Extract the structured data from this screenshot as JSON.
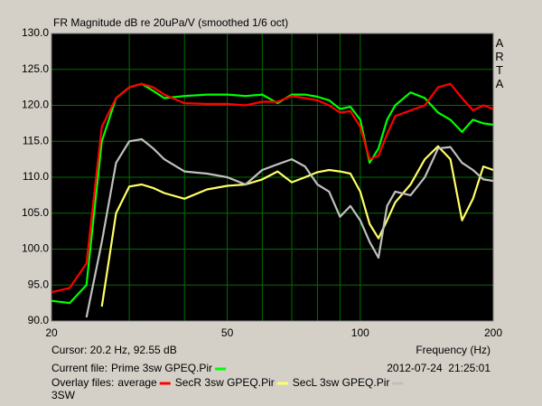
{
  "chart_data": {
    "type": "line",
    "title": "FR Magnitude dB re 20uPa/V (smoothed 1/6 oct)",
    "x_label": "Frequency (Hz)",
    "xlog": true,
    "grid": true,
    "x": [
      20,
      22,
      24,
      26,
      28,
      30,
      32,
      34,
      36,
      40,
      45,
      50,
      55,
      60,
      65,
      70,
      75,
      80,
      85,
      90,
      95,
      100,
      105,
      110,
      115,
      120,
      130,
      140,
      150,
      160,
      170,
      180,
      190,
      200
    ],
    "xlim": [
      20,
      200
    ],
    "xticks": [
      20,
      50,
      100,
      200
    ],
    "xgrid": [
      30,
      40,
      60,
      70,
      80,
      90
    ],
    "ylim": [
      90,
      130
    ],
    "yticks": [
      {
        "value": 90,
        "label": "90.0"
      },
      {
        "value": 95,
        "label": "95.0"
      },
      {
        "value": 100,
        "label": "100.0"
      },
      {
        "value": 105,
        "label": "105.0"
      },
      {
        "value": 110,
        "label": "110.0"
      },
      {
        "value": 115,
        "label": "115.0"
      },
      {
        "value": 120,
        "label": "120.0"
      },
      {
        "value": 125,
        "label": "125.0"
      },
      {
        "value": 130,
        "label": "130.0"
      }
    ],
    "series": [
      {
        "name": "Prime 3sw GPEQ.Pir",
        "color": "#00ff00",
        "values": [
          92.8,
          92.5,
          95,
          115,
          121,
          122.5,
          123,
          122,
          121,
          121.3,
          121.5,
          121.5,
          121.3,
          121.5,
          120.3,
          121.5,
          121.5,
          121.2,
          120.7,
          119.5,
          119.8,
          118,
          112,
          114,
          118,
          120,
          121.8,
          121,
          119,
          118,
          116.3,
          118,
          117.5,
          117.3
        ]
      },
      {
        "name": "average",
        "color": "#ff0000",
        "values": [
          94,
          94.6,
          98,
          117,
          121,
          122.5,
          123,
          122.5,
          121.5,
          120.3,
          120.2,
          120.2,
          120,
          120.5,
          120.5,
          121.3,
          121,
          120.7,
          120,
          119,
          119.2,
          117,
          112.5,
          113,
          116,
          118.5,
          119.3,
          120,
          122.5,
          123,
          121,
          119.3,
          120,
          119.5
        ]
      },
      {
        "name": "SecR 3sw GPEQ.Pir",
        "color": "#ffff66",
        "values": [
          null,
          null,
          null,
          92,
          105,
          108.7,
          109,
          108.5,
          107.8,
          107,
          108.3,
          108.8,
          109,
          109.7,
          110.8,
          109.3,
          110,
          110.7,
          111,
          110.8,
          110.5,
          108,
          103.5,
          101.5,
          104,
          106.5,
          109,
          112.5,
          114.3,
          112.5,
          104,
          107,
          111.5,
          111
        ]
      },
      {
        "name": "SecL 3sw GPEQ.Pir",
        "color": "#c0c0c0",
        "values": [
          null,
          null,
          90.5,
          101,
          112,
          115,
          115.3,
          114,
          112.5,
          110.8,
          110.5,
          110,
          109,
          111,
          111.8,
          112.5,
          111.5,
          109,
          108,
          104.5,
          106,
          104,
          101,
          98.8,
          106,
          108,
          107.5,
          110,
          114,
          114.2,
          112,
          111,
          109.7,
          109.5
        ]
      }
    ]
  },
  "watermark": "ARTA",
  "status": {
    "cursor": "Cursor: 20.2 Hz, 92.55 dB",
    "current_label": "Current file:",
    "overlay_label": "Overlay files:",
    "timestamp": "2012-07-24  21:25:01",
    "extra": "3SW"
  }
}
